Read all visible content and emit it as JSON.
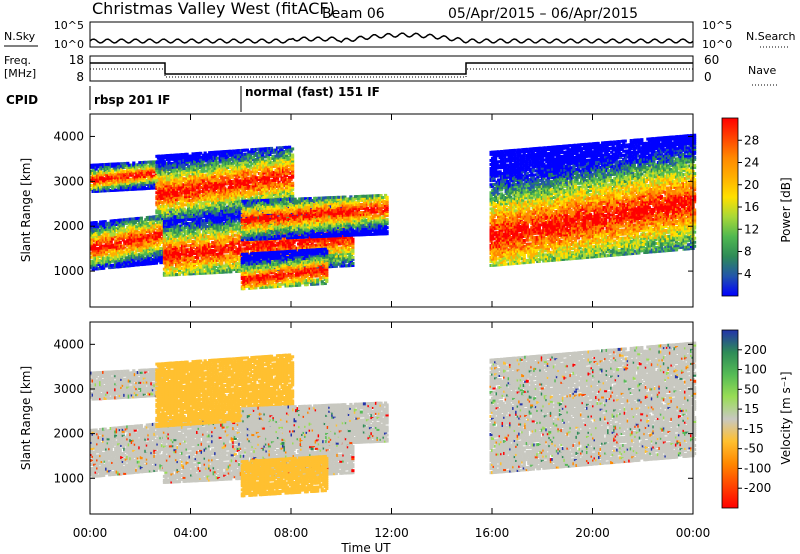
{
  "header": {
    "title": "Christmas Valley West (fitACF)",
    "beam": "Beam 06",
    "date_range": "05/Apr/2015 – 06/Apr/2015"
  },
  "noise_panel": {
    "left_label": "N.Sky",
    "right_label": "N.Search",
    "ticks_left": [
      "10^5",
      "10^0"
    ],
    "ticks_right": [
      "10^5",
      "10^0"
    ]
  },
  "freq_panel": {
    "left_label_1": "Freq.",
    "left_label_2": "[MHz]",
    "right_label": "Nave",
    "ticks_left": [
      "18",
      "8"
    ],
    "ticks_right": [
      "60",
      "0"
    ]
  },
  "cpid": {
    "label": "CPID",
    "modes": [
      "rbsp 201 IF",
      "normal (fast) 151 IF"
    ]
  },
  "chart_data": [
    {
      "type": "heatmap",
      "name": "power",
      "ylabel": "Slant Range [km]",
      "yticks": [
        "4000",
        "3000",
        "2000",
        "1000"
      ],
      "yrange": [
        200,
        4500
      ],
      "xrange_hours": [
        0,
        24
      ],
      "colorbar": {
        "label": "Power [dB]",
        "ticks": [
          "28",
          "24",
          "20",
          "16",
          "12",
          "8",
          "4"
        ],
        "colors": [
          "#ff0000",
          "#ff4400",
          "#ff8800",
          "#ffb000",
          "#ffe000",
          "#a8d838",
          "#50b850",
          "#2e8b57",
          "#2255aa",
          "#0000ff"
        ]
      },
      "bands": [
        {
          "t": [
            0.0,
            2.9
          ],
          "r": [
            1150,
            2200
          ],
          "peak": 1700
        },
        {
          "t": [
            0.0,
            2.9
          ],
          "r": [
            2850,
            3450
          ],
          "peak": 3150
        },
        {
          "t": [
            2.9,
            10.4
          ],
          "r": [
            1050,
            2500
          ],
          "peak": 1600
        },
        {
          "t": [
            2.6,
            8.0
          ],
          "r": [
            2300,
            3700
          ],
          "peak": 2950
        },
        {
          "t": [
            6.0,
            9.4
          ],
          "r": [
            700,
            1500
          ],
          "peak": 950
        },
        {
          "t": [
            6.0,
            11.8
          ],
          "r": [
            1800,
            2700
          ],
          "peak": 2300
        },
        {
          "t": [
            15.9,
            24.0
          ],
          "r": [
            1350,
            3900
          ],
          "peak": 2200
        }
      ]
    },
    {
      "type": "heatmap",
      "name": "velocity",
      "ylabel": "Slant Range [km]",
      "yticks": [
        "4000",
        "3000",
        "2000",
        "1000"
      ],
      "yrange": [
        200,
        4500
      ],
      "xrange_hours": [
        0,
        24
      ],
      "xticks": [
        "00:00",
        "04:00",
        "08:00",
        "12:00",
        "16:00",
        "20:00",
        "00:00"
      ],
      "xlabel": "Time UT",
      "colorbar": {
        "label": "Velocity [m s⁻¹]",
        "ticks": [
          "200",
          "100",
          "50",
          "15",
          "-15",
          "-50",
          "-100",
          "-200"
        ],
        "colors": [
          "#2233aa",
          "#2e8b57",
          "#55bb55",
          "#99dd55",
          "#c8c8c0",
          "#ffc030",
          "#ff8800",
          "#ff4400",
          "#ff0000"
        ]
      }
    }
  ]
}
